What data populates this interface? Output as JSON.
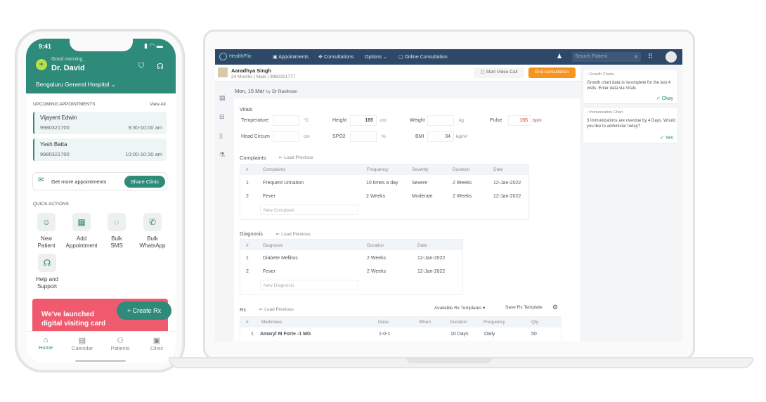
{
  "phone": {
    "time": "9:41",
    "greeting": "Good morning,",
    "doctor": "Dr. David",
    "hospital": "Bengaluru General Hospital ⌄",
    "upcoming_title": "UPCOMING APPOINTMENTS",
    "view_all": "View All",
    "appointments": [
      {
        "name": "Vijayent Edwin",
        "phone": "9980321700",
        "time": "9:30-10:00 am"
      },
      {
        "name": "Yash Batta",
        "phone": "9980321700",
        "time": "10:00-10:30 am"
      }
    ],
    "get_more": "Get more appointments",
    "share_clinic": "Share Clinic",
    "quick_title": "QUICK ACTIONS",
    "quick_actions": [
      {
        "l1": "New",
        "l2": "Patient"
      },
      {
        "l1": "Add",
        "l2": "Appointment"
      },
      {
        "l1": "Bulk",
        "l2": "SMS"
      },
      {
        "l1": "Bulk",
        "l2": "WhatsApp"
      },
      {
        "l1": "Help and",
        "l2": "Support"
      }
    ],
    "banner_l1": "We've launched",
    "banner_l2": "digital visiting card",
    "create_rx": "+  Create Rx",
    "tabs": [
      "Home",
      "Calendar",
      "Patients",
      "Clinic"
    ],
    "accent": "#2e8a79",
    "banner_color": "#ef5a6f"
  },
  "app": {
    "brand": "HealthPlix",
    "nav": [
      "Appointments",
      "Consultations",
      "Options ⌄",
      "Online Consultation"
    ],
    "search_placeholder": "Search Patient",
    "patient": {
      "name": "Aaradhya Singh",
      "age": "24 Months",
      "sex": "Male",
      "phone": "9980321777"
    },
    "start_video": "Start Video Call",
    "end_consult": "End consultation",
    "date": "Mon, 15 Mar",
    "by": "by",
    "doctor": "Dr Ravikiran",
    "vitals": {
      "title": "Vitals",
      "fields": [
        {
          "label": "Temperature",
          "value": "",
          "unit": "°C"
        },
        {
          "label": "Height",
          "value": "165",
          "unit": "cm"
        },
        {
          "label": "Weight",
          "value": "",
          "unit": "kg"
        },
        {
          "label": "Pulse",
          "value": "165",
          "unit": "bpm"
        },
        {
          "label": "Head Circum",
          "value": "",
          "unit": "cm"
        },
        {
          "label": "SPO2",
          "value": "",
          "unit": "%"
        },
        {
          "label": "BMI",
          "value": "34",
          "unit": "kg/m²"
        }
      ]
    },
    "load_previous": "⇤ Load Previous",
    "complaints": {
      "title": "Complaints",
      "headers": [
        "#",
        "Complaints",
        "Frequency",
        "Severity",
        "Duration",
        "Date"
      ],
      "rows": [
        [
          "1",
          "Frequent Urination",
          "10 times a day",
          "Severe",
          "2 Weeks",
          "12-Jan-2022"
        ],
        [
          "2",
          "Fever",
          "2 Weeks",
          "Moderate",
          "2 Weeks",
          "12-Jan-2022"
        ]
      ],
      "new_placeholder": "New Complaint"
    },
    "diagnosis": {
      "title": "Diagnosis",
      "headers": [
        "#",
        "Diagnosis",
        "Duration",
        "Date"
      ],
      "rows": [
        [
          "1",
          "Diabete Mellitus",
          "2 Weeks",
          "12-Jan-2022"
        ],
        [
          "2",
          "Fever",
          "2 Weeks",
          "12-Jan-2022"
        ]
      ],
      "new_placeholder": "New Diagnosis"
    },
    "rx": {
      "title": "Rx",
      "templates": "Available Rx Templates ▾",
      "save_template": "Save Rx Template",
      "headers": [
        "#",
        "Medicines",
        "Dose",
        "When",
        "Duration",
        "Frequency",
        "Qty"
      ],
      "rows": [
        [
          "1",
          "Amaryl M Forte -1 MG",
          "1-0-1",
          "",
          "10 Days",
          "Daily",
          "50"
        ]
      ]
    },
    "alerts": [
      {
        "title": "Growth Charts",
        "text": "Growth chart data is incomplete for the last 4 visits. Enter data via Vitals",
        "action": "✓ Okay"
      },
      {
        "title": "Immunization Chart",
        "text": "3 Immunizations are overdue by 4 Days. Would you like to administer today?",
        "action": "✓ Yes"
      }
    ],
    "nav_color": "#2d4868",
    "end_color": "#f7941d"
  }
}
